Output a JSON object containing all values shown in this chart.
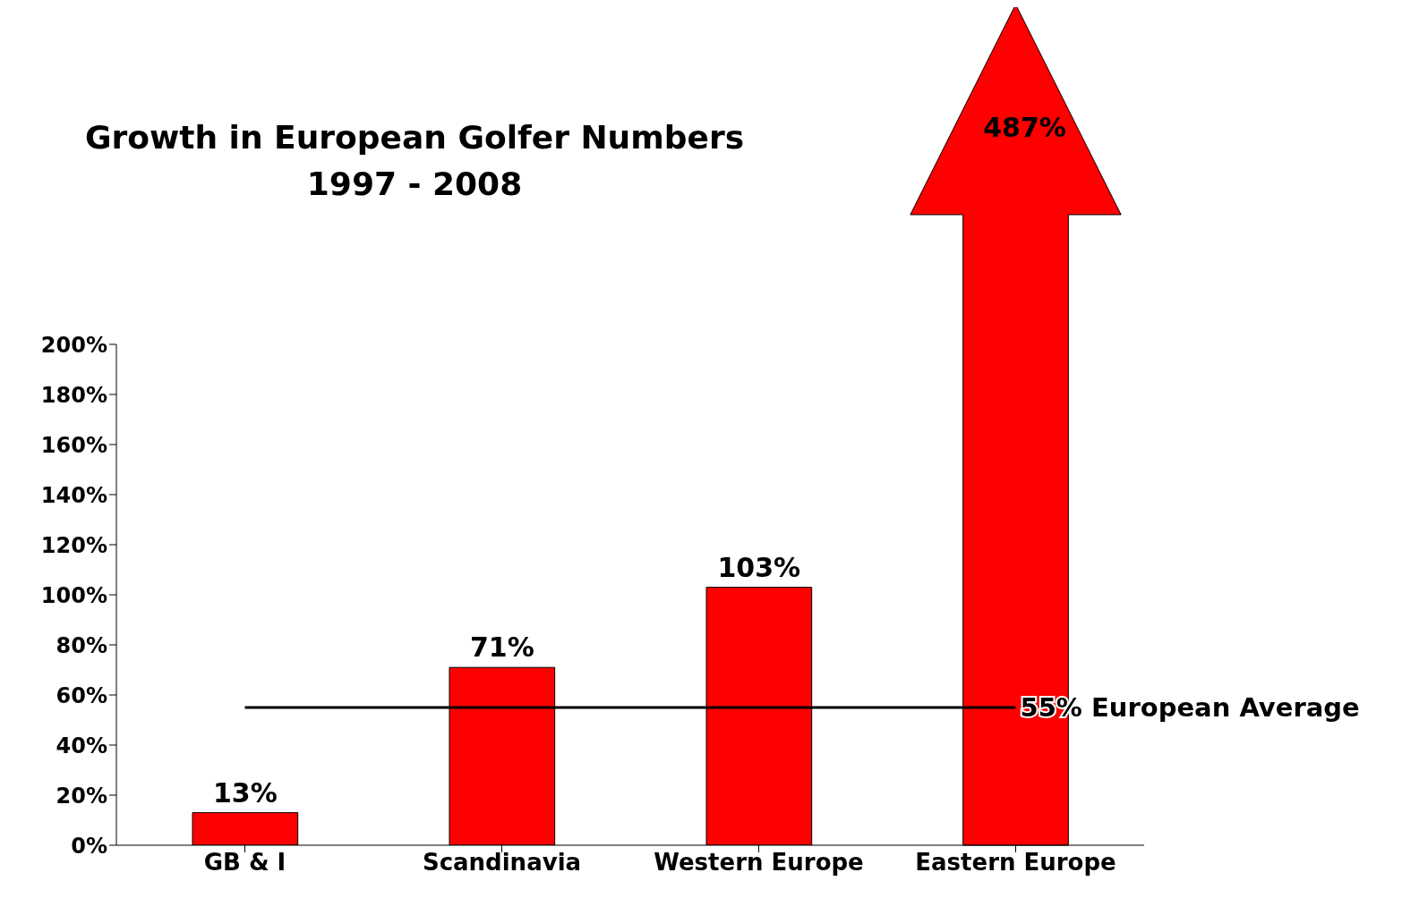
{
  "chart_data": {
    "type": "bar",
    "title": "Growth in European Golfer Numbers\n1997 - 2008",
    "categories": [
      "GB & I",
      "Scandinavia",
      "Western Europe",
      "Eastern Europe"
    ],
    "values": [
      13,
      71,
      103,
      null
    ],
    "value_labels": [
      "13%",
      "71%",
      "103%",
      "487%"
    ],
    "color": "#ff0000",
    "ylim": [
      0,
      200
    ],
    "yticks": [
      {
        "value": 0,
        "label": "0%"
      },
      {
        "value": 20,
        "label": "20%"
      },
      {
        "value": 40,
        "label": "40%"
      },
      {
        "value": 60,
        "label": "60%"
      },
      {
        "value": 80,
        "label": "80%"
      },
      {
        "value": 100,
        "label": "100%"
      },
      {
        "value": 120,
        "label": "120%"
      },
      {
        "value": 140,
        "label": "140%"
      },
      {
        "value": 160,
        "label": "160%"
      },
      {
        "value": 180,
        "label": "180%"
      },
      {
        "value": 200,
        "label": "200%"
      }
    ],
    "ref_lines": [
      {
        "axis": "y",
        "value": 55,
        "label": "55%  European Average",
        "color": "#000000"
      }
    ],
    "grid": false,
    "legend": false
  }
}
